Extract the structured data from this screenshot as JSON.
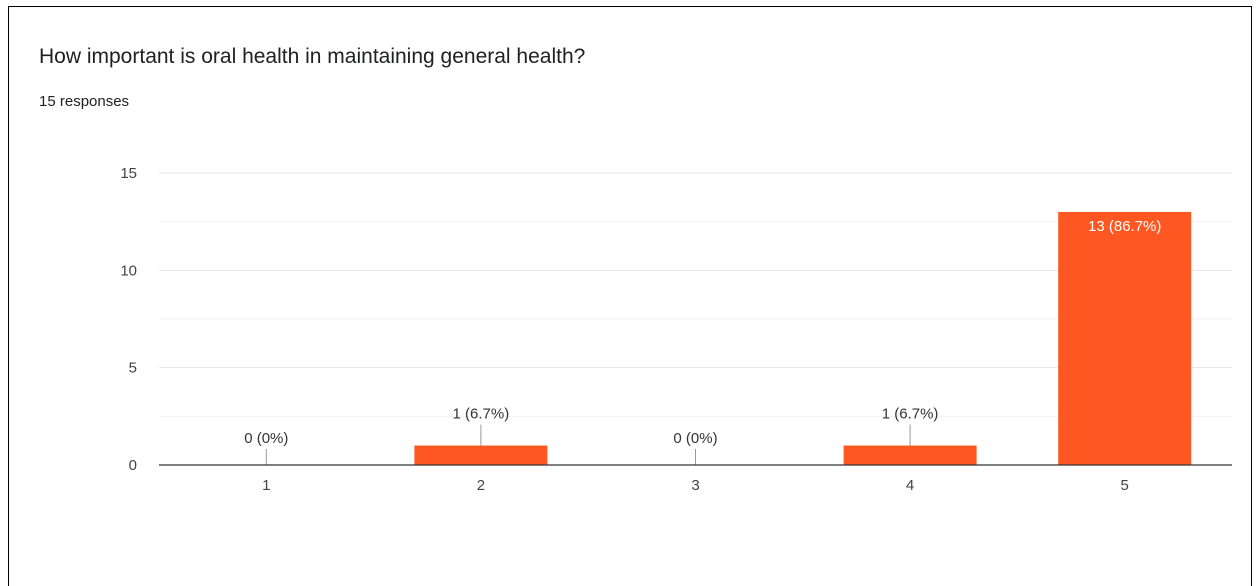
{
  "header": {
    "title": "How important is oral health in maintaining general health?",
    "responses": "15 responses"
  },
  "colors": {
    "bar": "#ff5722",
    "grid": "#e6e6e6",
    "axis": "#333333"
  },
  "chart_data": {
    "type": "bar",
    "title": "How important is oral health in maintaining general health?",
    "xlabel": "",
    "ylabel": "",
    "categories": [
      "1",
      "2",
      "3",
      "4",
      "5"
    ],
    "values": [
      0,
      1,
      0,
      1,
      13
    ],
    "data_labels": [
      "0 (0%)",
      "1 (6.7%)",
      "0 (0%)",
      "1 (6.7%)",
      "13 (86.7%)"
    ],
    "ylim": [
      0,
      15
    ],
    "yticks": [
      "0",
      "5",
      "10",
      "15"
    ],
    "grid": true,
    "legend": "none"
  }
}
